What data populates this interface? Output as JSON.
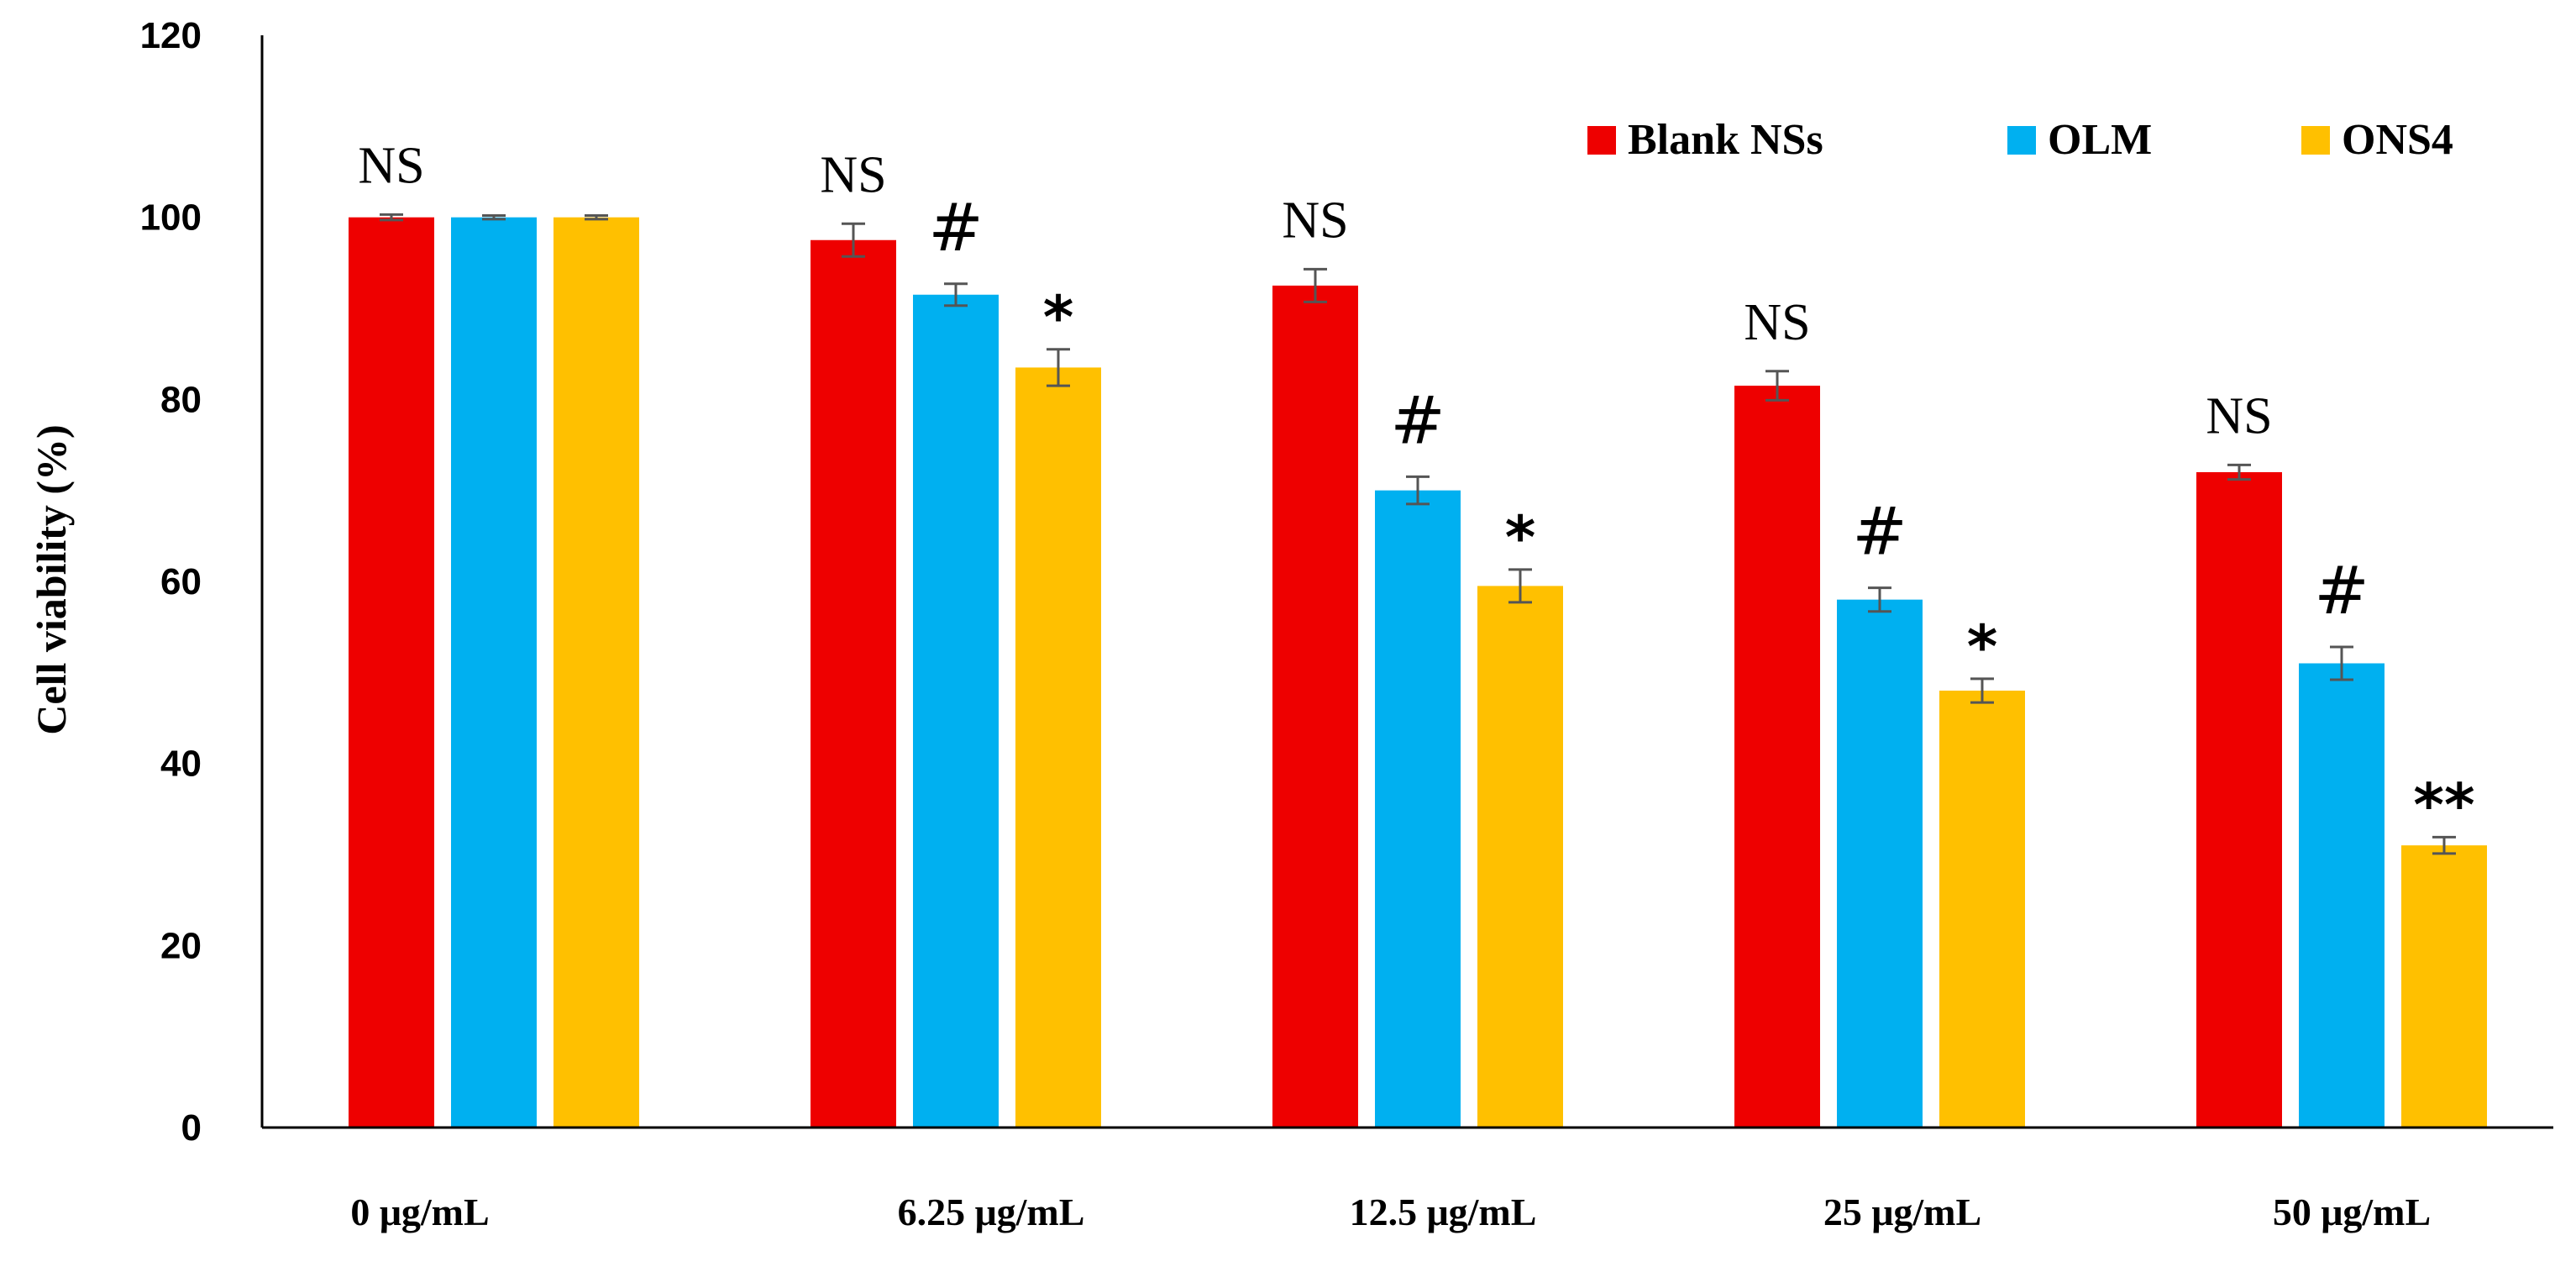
{
  "chart_data": {
    "type": "bar",
    "ylabel": "Cell viability (%)",
    "xlabel": "",
    "ylim": [
      0,
      120
    ],
    "yticks": [
      0,
      20,
      40,
      60,
      80,
      100,
      120
    ],
    "grid": false,
    "legend_position": "top-right",
    "categories": [
      "0 μg/mL",
      "6.25 μg/mL",
      "12.5 μg/mL",
      "25 μg/mL",
      "50 μg/mL"
    ],
    "series": [
      {
        "name": "Blank NSs",
        "color": "#ee0000",
        "values": [
          100,
          97.5,
          92.5,
          81.5,
          72
        ],
        "errors": [
          0.3,
          1.8,
          1.8,
          1.6,
          0.8
        ]
      },
      {
        "name": "OLM",
        "color": "#00b0f0",
        "values": [
          100,
          91.5,
          70,
          58,
          51
        ],
        "errors": [
          0.2,
          1.2,
          1.5,
          1.3,
          1.8
        ]
      },
      {
        "name": "ONS4",
        "color": "#ffc000",
        "values": [
          100,
          83.5,
          59.5,
          48,
          31
        ],
        "errors": [
          0.2,
          2.0,
          1.8,
          1.3,
          0.9
        ]
      }
    ],
    "annotations": [
      [
        "NS",
        "",
        ""
      ],
      [
        "NS",
        "#",
        "*"
      ],
      [
        "NS",
        "#",
        "*"
      ],
      [
        "NS",
        "#",
        "*"
      ],
      [
        "NS",
        "#",
        "**"
      ]
    ]
  }
}
